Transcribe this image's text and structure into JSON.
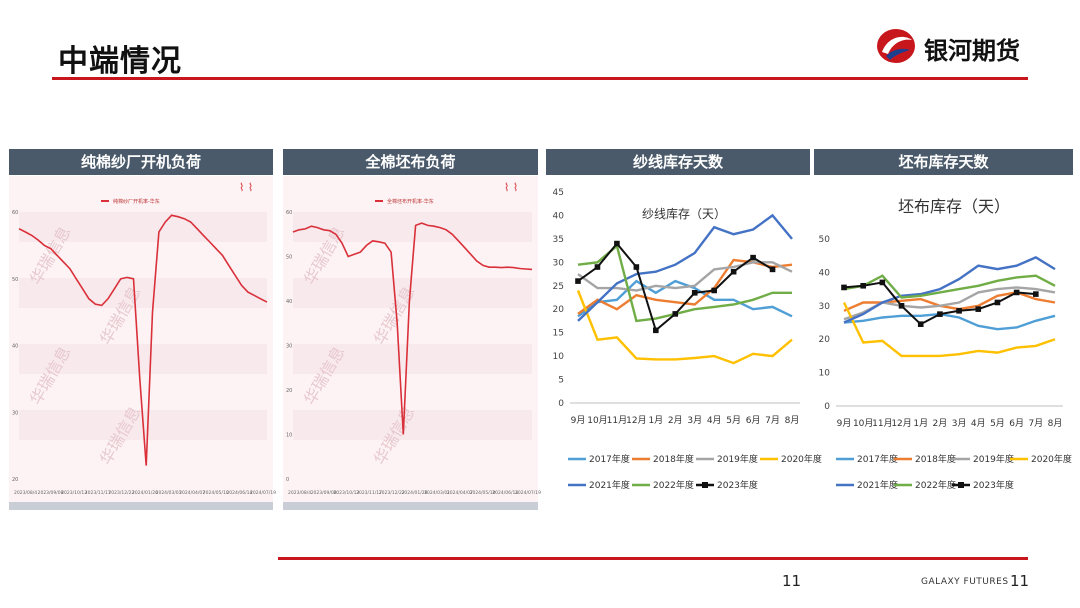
{
  "header": {
    "title": "中端情况",
    "brand": "银河期货"
  },
  "footer": {
    "brand": "GALAXY FUTURES",
    "page_left": "11",
    "page_right": "11"
  },
  "colors": {
    "accent": "#c8161d",
    "panel_header": "#4a5a6a"
  },
  "panels": [
    {
      "header": "纯棉纱厂开机负荷"
    },
    {
      "header": "全棉坯布负荷"
    },
    {
      "header": "纱线库存天数"
    },
    {
      "header": "坯布库存天数"
    }
  ],
  "chart_data": [
    {
      "type": "line",
      "title": "",
      "legend": [
        "纯棉纱厂开机率-华东"
      ],
      "y_ticks": [
        "20",
        "30",
        "40",
        "50",
        "60"
      ],
      "ylim": [
        20,
        60
      ],
      "x_ticks": [
        "2023/08/4",
        "2023/09/08",
        "2023/10/13",
        "2023/11/17",
        "2023/12/22",
        "2024/01/26",
        "2024/03/01",
        "2024/04/07",
        "2024/05/10",
        "2024/06/14",
        "2024/07/19"
      ],
      "series": [
        {
          "color": "#d9303a",
          "values": [
            57.5,
            57,
            56.5,
            55.8,
            55,
            54.5,
            53.5,
            52.5,
            51.5,
            50,
            48.5,
            47,
            46.2,
            46,
            47,
            48.5,
            50,
            50.2,
            50,
            35,
            22,
            45,
            57,
            58.5,
            59.5,
            59.3,
            59,
            58.5,
            57.5,
            56.5,
            55.5,
            54.5,
            53.5,
            52,
            50.5,
            49,
            48,
            47.5,
            47,
            46.5
          ]
        }
      ]
    },
    {
      "type": "line",
      "title": "",
      "legend": [
        "全棉坯布开机率-华东"
      ],
      "y_ticks": [
        "0",
        "10",
        "20",
        "30",
        "40",
        "50",
        "60"
      ],
      "ylim": [
        0,
        60
      ],
      "x_ticks": [
        "2023/08/4",
        "2023/09/08",
        "2023/10/13",
        "2023/11/17",
        "2023/12/22",
        "2024/01/26",
        "2024/03/01",
        "2024/04/07",
        "2024/05/10",
        "2024/06/14",
        "2024/07/19"
      ],
      "series": [
        {
          "color": "#d9303a",
          "values": [
            55.5,
            56,
            56.2,
            56.8,
            56.5,
            56,
            55.8,
            55,
            53,
            50,
            50.5,
            51,
            52.5,
            53.5,
            53.3,
            53,
            51,
            35,
            10,
            40,
            57,
            57.5,
            57,
            56.8,
            56.5,
            56,
            55,
            53.5,
            52,
            50.5,
            49,
            48,
            47.6,
            47.6,
            47.5,
            47.6,
            47.5,
            47.3,
            47.2,
            47.1
          ]
        }
      ]
    },
    {
      "type": "line",
      "title": "纱线库存（天）",
      "ylim": [
        0,
        45
      ],
      "y_ticks": [
        0,
        5,
        10,
        15,
        20,
        25,
        30,
        35,
        40,
        45
      ],
      "categories": [
        "9月",
        "10月",
        "11月",
        "12月",
        "1月",
        "2月",
        "3月",
        "4月",
        "5月",
        "6月",
        "7月",
        "8月"
      ],
      "series": [
        {
          "name": "2017年度",
          "color": "#4f9fd6",
          "values": [
            18.5,
            21.5,
            22,
            26,
            23.5,
            26,
            24.5,
            22,
            22,
            20,
            20.5,
            18.5
          ]
        },
        {
          "name": "2018年度",
          "color": "#ed7d31",
          "values": [
            19,
            22,
            20,
            23,
            22,
            21.5,
            21,
            24.5,
            30.5,
            30,
            29,
            29.5
          ]
        },
        {
          "name": "2019年度",
          "color": "#a5a5a5",
          "values": [
            27.5,
            24.5,
            24.5,
            24,
            25,
            24.5,
            25,
            28.5,
            29,
            30,
            30,
            28
          ]
        },
        {
          "name": "2020年度",
          "color": "#ffc000",
          "values": [
            24,
            13.5,
            14,
            9.5,
            9.3,
            9.3,
            9.6,
            10,
            8.5,
            10.5,
            10,
            13.5
          ]
        },
        {
          "name": "2021年度",
          "color": "#4472c4",
          "values": [
            17.5,
            21.5,
            25.5,
            27.5,
            28,
            29.5,
            32,
            37.5,
            36,
            37,
            40,
            35
          ]
        },
        {
          "name": "2022年度",
          "color": "#70ad47",
          "values": [
            29.5,
            30,
            33.5,
            17.5,
            18,
            19,
            20,
            20.5,
            21,
            22,
            23.5,
            23.5
          ]
        },
        {
          "name": "2023年度",
          "color": "#111111",
          "marker": "square",
          "values": [
            26,
            29,
            34,
            29,
            15.5,
            19,
            23.5,
            24,
            28,
            31,
            28.5,
            null
          ]
        }
      ]
    },
    {
      "type": "line",
      "title": "坯布库存（天）",
      "ylim": [
        0,
        50
      ],
      "y_ticks": [
        0,
        10,
        20,
        30,
        40,
        50
      ],
      "categories": [
        "9月",
        "10月",
        "11月",
        "12月",
        "1月",
        "2月",
        "3月",
        "4月",
        "5月",
        "6月",
        "7月",
        "8月"
      ],
      "series": [
        {
          "name": "2017年度",
          "color": "#4f9fd6",
          "values": [
            25,
            25.5,
            26.5,
            27,
            27,
            27.5,
            26.5,
            24,
            23,
            23.5,
            25.5,
            27
          ]
        },
        {
          "name": "2018年度",
          "color": "#ed7d31",
          "values": [
            28.5,
            31,
            31,
            31.5,
            32,
            30,
            29,
            30,
            33,
            34,
            32,
            31
          ]
        },
        {
          "name": "2019年度",
          "color": "#a5a5a5",
          "values": [
            26,
            28,
            31,
            30,
            29.5,
            30,
            31,
            34,
            35,
            35.5,
            35,
            34
          ]
        },
        {
          "name": "2020年度",
          "color": "#ffc000",
          "values": [
            31,
            19,
            19.5,
            15,
            15,
            15,
            15.5,
            16.5,
            16,
            17.5,
            18,
            20
          ]
        },
        {
          "name": "2021年度",
          "color": "#4472c4",
          "values": [
            25,
            27.5,
            31,
            33,
            33.5,
            35,
            38,
            42,
            41,
            42,
            44.5,
            41
          ]
        },
        {
          "name": "2022年度",
          "color": "#70ad47",
          "values": [
            35,
            36,
            39,
            32.5,
            33,
            34,
            35,
            36,
            37.5,
            38.5,
            39,
            36
          ]
        },
        {
          "name": "2023年度",
          "color": "#111111",
          "marker": "square",
          "values": [
            35.5,
            36,
            37,
            30,
            24.5,
            27.5,
            28.5,
            29,
            31,
            34,
            33.5,
            null
          ]
        }
      ]
    }
  ]
}
